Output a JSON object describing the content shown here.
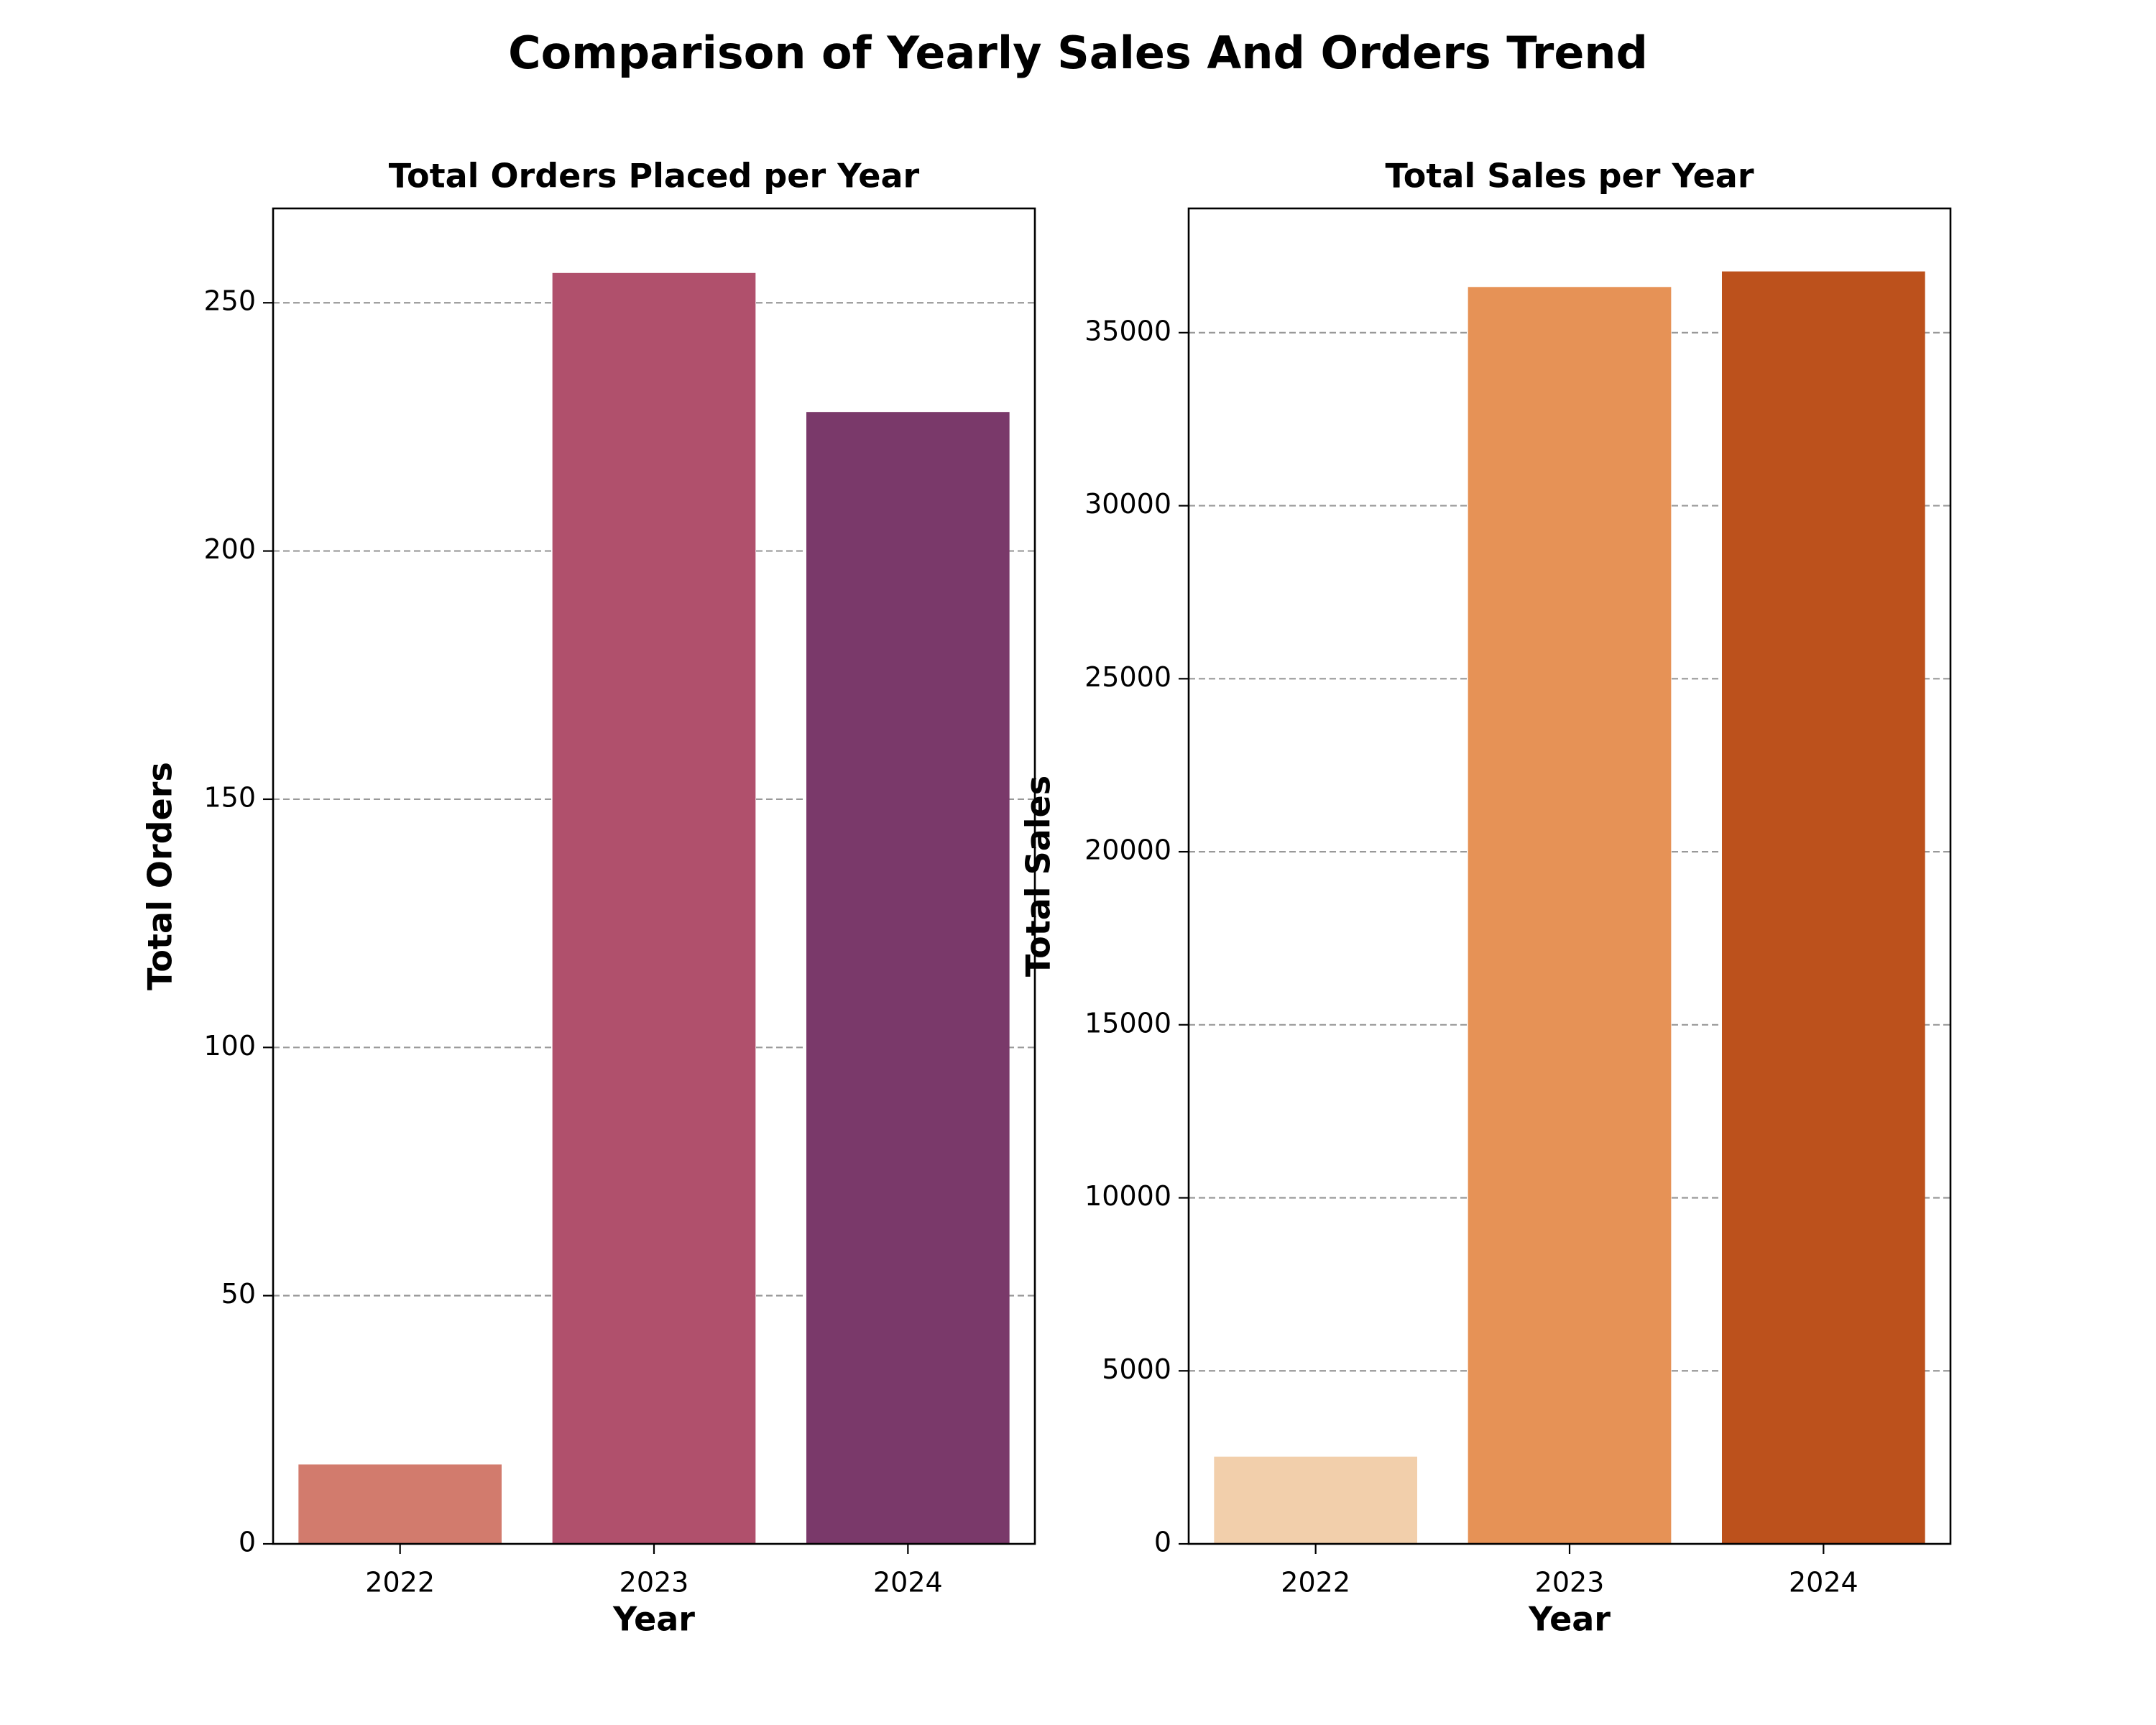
{
  "figure": {
    "title": "Comparison of Yearly Sales And Orders Trend"
  },
  "chart_data": [
    {
      "type": "bar",
      "title": "Total Orders Placed per Year",
      "xlabel": "Year",
      "ylabel": "Total Orders",
      "categories": [
        "2022",
        "2023",
        "2024"
      ],
      "values": [
        16,
        256,
        228
      ],
      "colors": [
        "#d27b6d",
        "#b0506c",
        "#7a396a"
      ],
      "ylim": [
        0,
        269
      ],
      "yticks": [
        0,
        50,
        100,
        150,
        200,
        250
      ],
      "ytick_labels": [
        "0",
        "50",
        "100",
        "150",
        "200",
        "250"
      ],
      "grid": "y-dashed"
    },
    {
      "type": "bar",
      "title": "Total Sales per Year",
      "xlabel": "Year",
      "ylabel": "Total Sales",
      "categories": [
        "2022",
        "2023",
        "2024"
      ],
      "values": [
        2520,
        36320,
        36770
      ],
      "colors": [
        "#f2cfab",
        "#e69256",
        "#bc511c"
      ],
      "ylim": [
        0,
        38590
      ],
      "yticks": [
        0,
        5000,
        10000,
        15000,
        20000,
        25000,
        30000,
        35000
      ],
      "ytick_labels": [
        "0",
        "5000",
        "10000",
        "15000",
        "20000",
        "25000",
        "30000",
        "35000"
      ],
      "grid": "y-dashed"
    }
  ]
}
